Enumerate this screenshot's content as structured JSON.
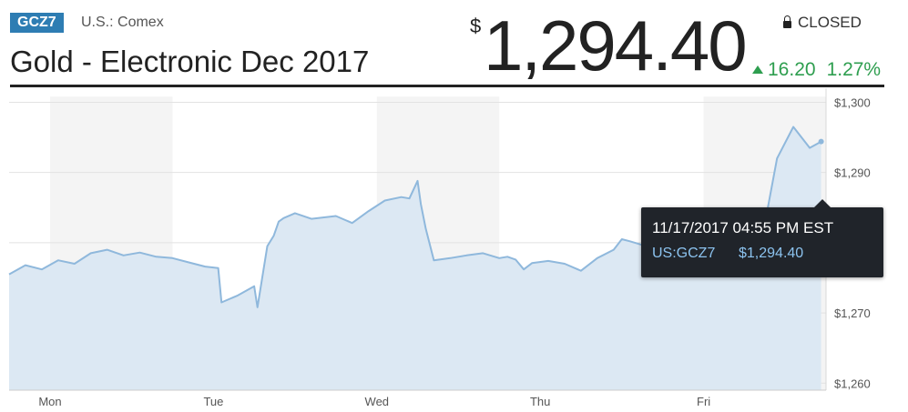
{
  "header": {
    "ticker": "GCZ7",
    "exchange": "U.S.: Comex",
    "title": "Gold - Electronic Dec 2017",
    "currency_symbol": "$",
    "price": "1,294.40",
    "status": "CLOSED",
    "change": "16.20",
    "change_pct": "1.27%",
    "change_color": "#2e9e4f"
  },
  "tooltip": {
    "datetime": "11/17/2017 04:55 PM EST",
    "symbol": "US:GCZ7",
    "value": "$1,294.40"
  },
  "chart_data": {
    "type": "area",
    "title": "",
    "xlabel": "",
    "ylabel": "",
    "x_ticks": [
      "Mon",
      "Tue",
      "Wed",
      "Thu",
      "Fri"
    ],
    "y_ticks": [
      "$1,300",
      "$1,290",
      "$1,270",
      "$1,260"
    ],
    "ylim": [
      1259,
      1302
    ],
    "xlim": [
      0,
      5
    ],
    "grid": true,
    "line_color": "#8fb8dc",
    "fill_color": "#dce8f3",
    "series": [
      {
        "x": [
          0,
          0.1,
          0.2,
          0.3,
          0.4,
          0.5,
          0.6,
          0.7,
          0.8,
          0.9,
          1.0,
          1.1,
          1.2,
          1.28,
          1.3,
          1.4,
          1.5,
          1.52,
          1.58,
          1.62,
          1.65,
          1.68,
          1.75,
          1.85,
          2.0,
          2.1,
          2.2,
          2.3,
          2.4,
          2.45,
          2.5,
          2.52,
          2.55,
          2.6,
          2.7,
          2.8,
          2.9,
          3.0,
          3.05,
          3.1,
          3.15,
          3.2,
          3.3,
          3.4,
          3.5,
          3.6,
          3.7,
          3.75,
          3.8,
          3.9,
          4.0,
          4.1,
          4.2,
          4.3,
          4.4,
          4.5,
          4.55,
          4.62,
          4.7,
          4.8,
          4.9,
          4.97
        ],
        "y": [
          1275.5,
          1276.8,
          1276.2,
          1277.5,
          1277.0,
          1278.5,
          1279.0,
          1278.2,
          1278.6,
          1278.0,
          1277.8,
          1277.2,
          1276.6,
          1276.4,
          1271.5,
          1272.5,
          1273.8,
          1270.8,
          1279.5,
          1281.0,
          1283.0,
          1283.5,
          1284.2,
          1283.4,
          1283.8,
          1282.8,
          1284.5,
          1286.0,
          1286.5,
          1286.3,
          1288.8,
          1285.5,
          1282.0,
          1277.5,
          1277.8,
          1278.2,
          1278.5,
          1277.8,
          1278.0,
          1277.6,
          1276.2,
          1277.1,
          1277.4,
          1277.0,
          1276.0,
          1277.8,
          1279.0,
          1280.5,
          1280.2,
          1279.5,
          1279.8,
          1280.0,
          1279.2,
          1280.2,
          1279.6,
          1280.8,
          1280.2,
          1282.0,
          1292.0,
          1296.5,
          1293.5,
          1294.4
        ]
      }
    ]
  }
}
